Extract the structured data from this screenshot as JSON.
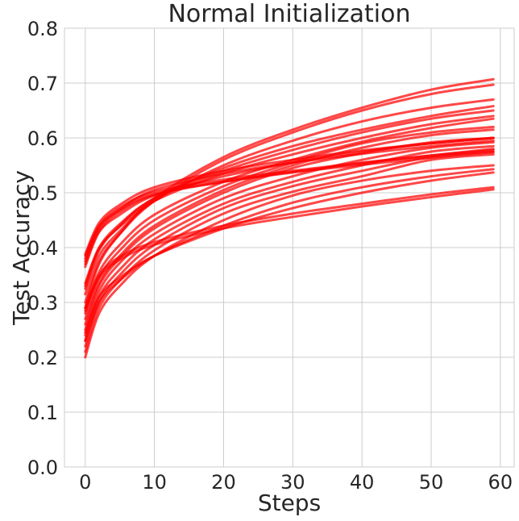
{
  "chart_data": {
    "type": "line",
    "title": "Normal Initialization",
    "xlabel": "Steps",
    "ylabel": "Test Accuracy",
    "xlim": [
      -3,
      62
    ],
    "ylim": [
      0,
      0.8
    ],
    "xticks": [
      0,
      10,
      20,
      30,
      40,
      50,
      60
    ],
    "yticks": [
      0.0,
      0.1,
      0.2,
      0.3,
      0.4,
      0.5,
      0.6,
      0.7,
      0.8
    ],
    "xtick_labels": [
      "0",
      "10",
      "20",
      "30",
      "40",
      "50",
      "60"
    ],
    "ytick_labels": [
      "0.0",
      "0.1",
      "0.2",
      "0.3",
      "0.4",
      "0.5",
      "0.6",
      "0.7",
      "0.8"
    ],
    "grid": true,
    "legend": "none",
    "line_color": "#ff0000",
    "x": [
      0,
      2,
      5,
      10,
      20,
      30,
      40,
      50,
      59
    ],
    "series": [
      {
        "values": [
          0.385,
          0.44,
          0.473,
          0.502,
          0.524,
          0.54,
          0.555,
          0.568,
          0.578
        ]
      },
      {
        "values": [
          0.375,
          0.435,
          0.468,
          0.498,
          0.52,
          0.537,
          0.551,
          0.564,
          0.574
        ]
      },
      {
        "values": [
          0.37,
          0.43,
          0.465,
          0.496,
          0.52,
          0.538,
          0.554,
          0.568,
          0.58
        ]
      },
      {
        "values": [
          0.38,
          0.438,
          0.47,
          0.505,
          0.535,
          0.555,
          0.571,
          0.585,
          0.595
        ]
      },
      {
        "values": [
          0.365,
          0.428,
          0.46,
          0.495,
          0.53,
          0.555,
          0.575,
          0.59,
          0.6
        ]
      },
      {
        "values": [
          0.388,
          0.445,
          0.478,
          0.51,
          0.54,
          0.56,
          0.577,
          0.59,
          0.6
        ]
      },
      {
        "values": [
          0.335,
          0.4,
          0.443,
          0.49,
          0.545,
          0.585,
          0.615,
          0.64,
          0.658
        ]
      },
      {
        "values": [
          0.315,
          0.385,
          0.43,
          0.485,
          0.55,
          0.595,
          0.63,
          0.655,
          0.67
        ]
      },
      {
        "values": [
          0.3,
          0.375,
          0.425,
          0.485,
          0.56,
          0.61,
          0.65,
          0.68,
          0.697
        ]
      },
      {
        "values": [
          0.29,
          0.37,
          0.425,
          0.49,
          0.565,
          0.615,
          0.655,
          0.688,
          0.707
        ]
      },
      {
        "values": [
          0.325,
          0.395,
          0.44,
          0.49,
          0.54,
          0.578,
          0.61,
          0.635,
          0.65
        ]
      },
      {
        "values": [
          0.33,
          0.398,
          0.438,
          0.485,
          0.535,
          0.57,
          0.6,
          0.625,
          0.64
        ]
      },
      {
        "values": [
          0.28,
          0.355,
          0.405,
          0.46,
          0.52,
          0.56,
          0.593,
          0.618,
          0.635
        ]
      },
      {
        "values": [
          0.27,
          0.345,
          0.395,
          0.45,
          0.512,
          0.555,
          0.59,
          0.61,
          0.62
        ]
      },
      {
        "values": [
          0.26,
          0.335,
          0.385,
          0.44,
          0.505,
          0.55,
          0.582,
          0.605,
          0.615
        ]
      },
      {
        "values": [
          0.25,
          0.33,
          0.38,
          0.435,
          0.5,
          0.545,
          0.572,
          0.592,
          0.6
        ]
      },
      {
        "values": [
          0.24,
          0.32,
          0.372,
          0.425,
          0.49,
          0.53,
          0.56,
          0.582,
          0.592
        ]
      },
      {
        "values": [
          0.23,
          0.31,
          0.36,
          0.415,
          0.48,
          0.52,
          0.55,
          0.575,
          0.585
        ]
      },
      {
        "values": [
          0.22,
          0.3,
          0.35,
          0.405,
          0.472,
          0.512,
          0.54,
          0.565,
          0.575
        ]
      },
      {
        "values": [
          0.21,
          0.29,
          0.34,
          0.395,
          0.462,
          0.502,
          0.53,
          0.56,
          0.57
        ]
      },
      {
        "values": [
          0.2,
          0.28,
          0.33,
          0.385,
          0.45,
          0.495,
          0.522,
          0.54,
          0.55
        ]
      },
      {
        "values": [
          0.23,
          0.3,
          0.34,
          0.385,
          0.44,
          0.482,
          0.51,
          0.53,
          0.543
        ]
      },
      {
        "values": [
          0.245,
          0.31,
          0.345,
          0.385,
          0.435,
          0.472,
          0.5,
          0.522,
          0.537
        ]
      },
      {
        "values": [
          0.29,
          0.35,
          0.383,
          0.41,
          0.44,
          0.462,
          0.48,
          0.497,
          0.51
        ]
      },
      {
        "values": [
          0.285,
          0.345,
          0.378,
          0.405,
          0.435,
          0.456,
          0.475,
          0.492,
          0.506
        ]
      }
    ]
  }
}
